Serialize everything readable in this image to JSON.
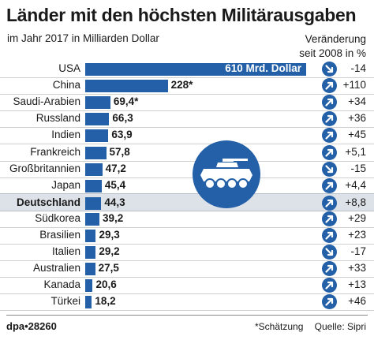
{
  "title": "Länder mit den höchsten Militärausgaben",
  "subtitle": "im Jahr 2017 in Milliarden Dollar",
  "change_header": [
    "Veränderung",
    "seit 2008 in %"
  ],
  "footer": {
    "credit": "dpa•28260",
    "note": "*Schätzung",
    "source": "Quelle: Sipri"
  },
  "colors": {
    "bar": "#2360a8",
    "highlight_row": "#dde2e9"
  },
  "icons": {
    "up": "arrow-up-right-icon",
    "down": "arrow-down-right-icon",
    "vehicle": "armored-vehicle-icon"
  },
  "chart_data": {
    "type": "bar",
    "orientation": "horizontal",
    "title": "Länder mit den höchsten Militärausgaben",
    "subtitle": "im Jahr 2017 in Milliarden Dollar",
    "highlighted_category": "Deutschland",
    "categories": [
      "USA",
      "China",
      "Saudi-Arabien",
      "Russland",
      "Indien",
      "Frankreich",
      "Großbritannien",
      "Japan",
      "Deutschland",
      "Südkorea",
      "Brasilien",
      "Italien",
      "Australien",
      "Kanada",
      "Türkei"
    ],
    "values": [
      610,
      228,
      69.4,
      66.3,
      63.9,
      57.8,
      47.2,
      45.4,
      44.3,
      39.2,
      29.3,
      29.2,
      27.5,
      20.6,
      18.2
    ],
    "value_labels": [
      "610 Mrd. Dollar",
      "228*",
      "69,4*",
      "66,3",
      "63,9",
      "57,8",
      "47,2",
      "45,4",
      "44,3",
      "39,2",
      "29,3",
      "29,2",
      "27,5",
      "20,6",
      "18,2"
    ],
    "change_since_2008_pct": [
      -14,
      110,
      34,
      36,
      45,
      5.1,
      -15,
      4.4,
      8.8,
      29,
      23,
      -17,
      33,
      13,
      46
    ],
    "change_labels": [
      "-14",
      "+110",
      "+34",
      "+36",
      "+45",
      "+5,1",
      "-15",
      "+4,4",
      "+8,8",
      "+29",
      "+23",
      "-17",
      "+33",
      "+13",
      "+46"
    ]
  }
}
